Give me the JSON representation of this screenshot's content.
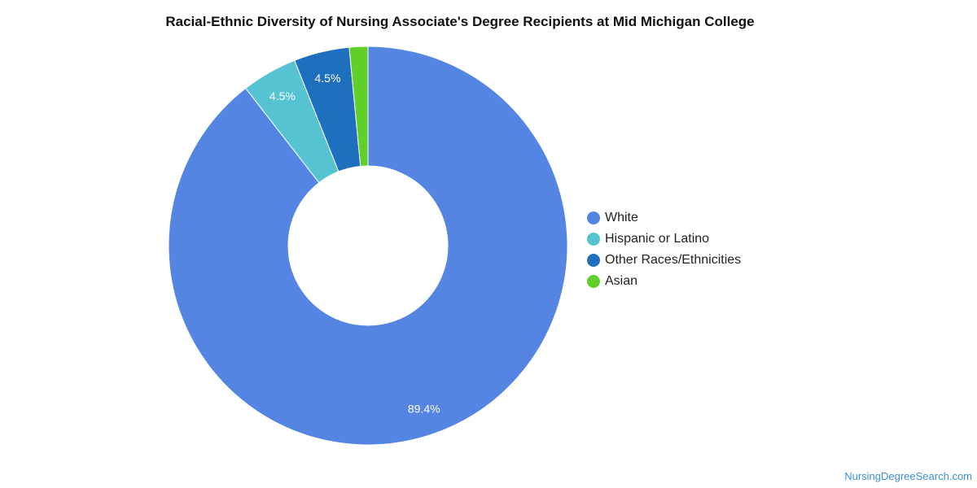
{
  "title": "Racial-Ethnic Diversity of Nursing Associate's Degree Recipients at Mid Michigan College",
  "chart_data": {
    "type": "pie",
    "donut": true,
    "title": "Racial-Ethnic Diversity of Nursing Associate's Degree Recipients at Mid Michigan College",
    "legend_position": "right",
    "slices": [
      {
        "label": "White",
        "value": 89.4,
        "display": "89.4%",
        "color": "#5585e3"
      },
      {
        "label": "Hispanic or Latino",
        "value": 4.5,
        "display": "4.5%",
        "color": "#55c3d1"
      },
      {
        "label": "Other Races/Ethnicities",
        "value": 4.5,
        "display": "4.5%",
        "color": "#1f6fbf"
      },
      {
        "label": "Asian",
        "value": 1.5,
        "display": "",
        "color": "#5fcf2a"
      }
    ]
  },
  "source": "NursingDegreeSearch.com"
}
